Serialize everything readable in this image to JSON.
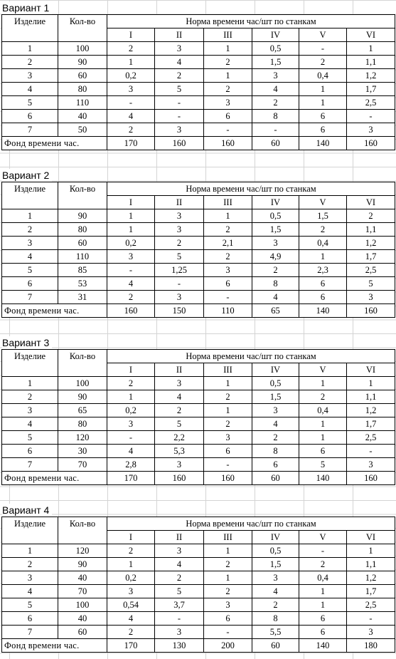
{
  "headers": {
    "product": "Изделие",
    "qty": "Кол-во",
    "norm": "Норма времени час/шт по станкам",
    "machines": [
      "I",
      "II",
      "III",
      "IV",
      "V",
      "VI"
    ],
    "fund": "Фонд времени час."
  },
  "variants": [
    {
      "title": "Вариант 1",
      "rows": [
        {
          "id": "1",
          "qty": "100",
          "norms": [
            "2",
            "3",
            "1",
            "0,5",
            "-",
            "1"
          ]
        },
        {
          "id": "2",
          "qty": "90",
          "norms": [
            "1",
            "4",
            "2",
            "1,5",
            "2",
            "1,1"
          ]
        },
        {
          "id": "3",
          "qty": "60",
          "norms": [
            "0,2",
            "2",
            "1",
            "3",
            "0,4",
            "1,2"
          ]
        },
        {
          "id": "4",
          "qty": "80",
          "norms": [
            "3",
            "5",
            "2",
            "4",
            "1",
            "1,7"
          ]
        },
        {
          "id": "5",
          "qty": "110",
          "norms": [
            "-",
            "-",
            "3",
            "2",
            "1",
            "2,5"
          ]
        },
        {
          "id": "6",
          "qty": "40",
          "norms": [
            "4",
            "-",
            "6",
            "8",
            "6",
            "-"
          ]
        },
        {
          "id": "7",
          "qty": "50",
          "norms": [
            "2",
            "3",
            "-",
            "-",
            "6",
            "3"
          ]
        }
      ],
      "fund": [
        "170",
        "160",
        "160",
        "60",
        "140",
        "160"
      ]
    },
    {
      "title": "Вариант 2",
      "rows": [
        {
          "id": "1",
          "qty": "90",
          "norms": [
            "1",
            "3",
            "1",
            "0,5",
            "1,5",
            "2"
          ]
        },
        {
          "id": "2",
          "qty": "80",
          "norms": [
            "1",
            "3",
            "2",
            "1,5",
            "2",
            "1,1"
          ]
        },
        {
          "id": "3",
          "qty": "60",
          "norms": [
            "0,2",
            "2",
            "2,1",
            "3",
            "0,4",
            "1,2"
          ]
        },
        {
          "id": "4",
          "qty": "110",
          "norms": [
            "3",
            "5",
            "2",
            "4,9",
            "1",
            "1,7"
          ]
        },
        {
          "id": "5",
          "qty": "85",
          "norms": [
            "-",
            "1,25",
            "3",
            "2",
            "2,3",
            "2,5"
          ]
        },
        {
          "id": "6",
          "qty": "53",
          "norms": [
            "4",
            "-",
            "6",
            "8",
            "6",
            "5"
          ]
        },
        {
          "id": "7",
          "qty": "31",
          "norms": [
            "2",
            "3",
            "-",
            "4",
            "6",
            "3"
          ]
        }
      ],
      "fund": [
        "160",
        "150",
        "110",
        "65",
        "140",
        "160"
      ]
    },
    {
      "title": "Вариант 3",
      "rows": [
        {
          "id": "1",
          "qty": "100",
          "norms": [
            "2",
            "3",
            "1",
            "0,5",
            "1",
            "1"
          ]
        },
        {
          "id": "2",
          "qty": "90",
          "norms": [
            "1",
            "4",
            "2",
            "1,5",
            "2",
            "1,1"
          ]
        },
        {
          "id": "3",
          "qty": "65",
          "norms": [
            "0,2",
            "2",
            "1",
            "3",
            "0,4",
            "1,2"
          ]
        },
        {
          "id": "4",
          "qty": "80",
          "norms": [
            "3",
            "5",
            "2",
            "4",
            "1",
            "1,7"
          ]
        },
        {
          "id": "5",
          "qty": "120",
          "norms": [
            "-",
            "2,2",
            "3",
            "2",
            "1",
            "2,5"
          ]
        },
        {
          "id": "6",
          "qty": "30",
          "norms": [
            "4",
            "5,3",
            "6",
            "8",
            "6",
            "-"
          ]
        },
        {
          "id": "7",
          "qty": "70",
          "norms": [
            "2,8",
            "3",
            "-",
            "6",
            "5",
            "3"
          ]
        }
      ],
      "fund": [
        "170",
        "160",
        "160",
        "60",
        "140",
        "160"
      ]
    },
    {
      "title": "Вариант 4",
      "rows": [
        {
          "id": "1",
          "qty": "120",
          "norms": [
            "2",
            "3",
            "1",
            "0,5",
            "-",
            "1"
          ]
        },
        {
          "id": "2",
          "qty": "90",
          "norms": [
            "1",
            "4",
            "2",
            "1,5",
            "2",
            "1,1"
          ]
        },
        {
          "id": "3",
          "qty": "40",
          "norms": [
            "0,2",
            "2",
            "1",
            "3",
            "0,4",
            "1,2"
          ]
        },
        {
          "id": "4",
          "qty": "70",
          "norms": [
            "3",
            "5",
            "2",
            "4",
            "1",
            "1,7"
          ]
        },
        {
          "id": "5",
          "qty": "100",
          "norms": [
            "0,54",
            "3,7",
            "3",
            "2",
            "1",
            "2,5"
          ]
        },
        {
          "id": "6",
          "qty": "40",
          "norms": [
            "4",
            "-",
            "6",
            "8",
            "6",
            "-"
          ]
        },
        {
          "id": "7",
          "qty": "60",
          "norms": [
            "2",
            "3",
            "-",
            "5,5",
            "6",
            "3"
          ]
        }
      ],
      "fund": [
        "170",
        "130",
        "200",
        "60",
        "140",
        "180"
      ]
    }
  ]
}
